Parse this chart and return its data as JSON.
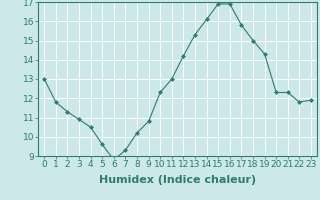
{
  "x": [
    0,
    1,
    2,
    3,
    4,
    5,
    6,
    7,
    8,
    9,
    10,
    11,
    12,
    13,
    14,
    15,
    16,
    17,
    18,
    19,
    20,
    21,
    22,
    23
  ],
  "y": [
    13.0,
    11.8,
    11.3,
    10.9,
    10.5,
    9.6,
    8.8,
    9.3,
    10.2,
    10.8,
    12.3,
    13.0,
    14.2,
    15.3,
    16.1,
    16.9,
    16.9,
    15.8,
    15.0,
    14.3,
    12.3,
    12.3,
    11.8,
    11.9
  ],
  "xlabel": "Humidex (Indice chaleur)",
  "ylim": [
    9,
    17
  ],
  "xlim": [
    -0.5,
    23.5
  ],
  "yticks": [
    9,
    10,
    11,
    12,
    13,
    14,
    15,
    16,
    17
  ],
  "xticks": [
    0,
    1,
    2,
    3,
    4,
    5,
    6,
    7,
    8,
    9,
    10,
    11,
    12,
    13,
    14,
    15,
    16,
    17,
    18,
    19,
    20,
    21,
    22,
    23
  ],
  "xtick_labels": [
    "0",
    "1",
    "2",
    "3",
    "4",
    "5",
    "6",
    "7",
    "8",
    "9",
    "10",
    "11",
    "12",
    "13",
    "14",
    "15",
    "16",
    "17",
    "18",
    "19",
    "20",
    "21",
    "22",
    "23"
  ],
  "line_color": "#2e7d6e",
  "marker": "D",
  "marker_size": 2.0,
  "bg_color": "#cce8e8",
  "grid_color": "#ffffff",
  "xlabel_fontsize": 8,
  "tick_fontsize": 6.5
}
